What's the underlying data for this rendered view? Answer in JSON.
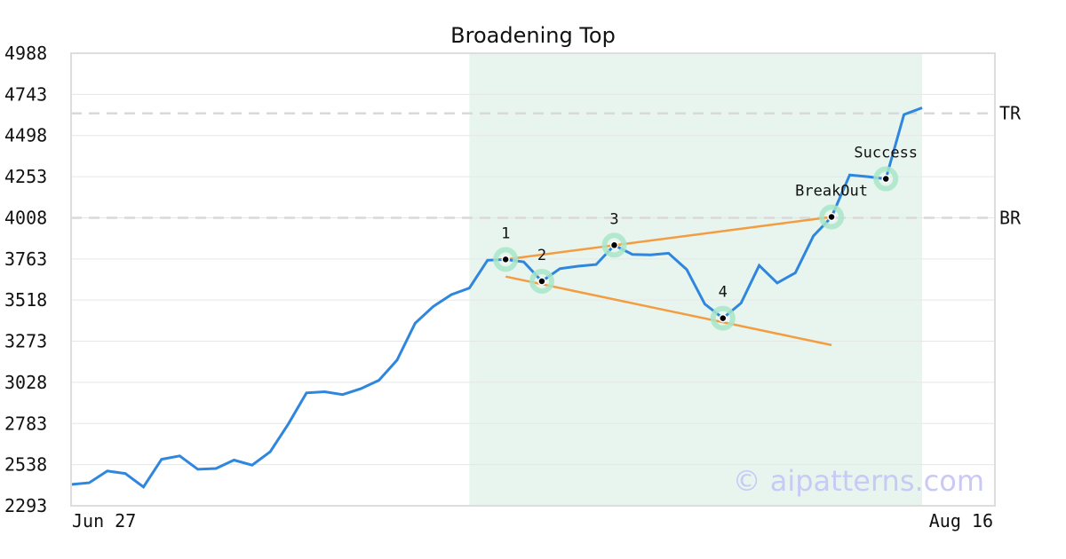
{
  "chart_data": {
    "type": "line",
    "title": "Broadening Top",
    "xlabel": "",
    "ylabel": "",
    "x_tick_labels": [
      "Jun 27",
      "Aug 16"
    ],
    "y_ticks": [
      2293,
      2538,
      2783,
      3028,
      3273,
      3518,
      3763,
      4008,
      4253,
      4498,
      4743,
      4988
    ],
    "ylim": [
      2293,
      4988
    ],
    "grid": "horizontal",
    "series": [
      {
        "color": "#2e86de",
        "values": [
          2420,
          2430,
          2500,
          2485,
          2405,
          2570,
          2590,
          2510,
          2515,
          2565,
          2535,
          2615,
          2780,
          2965,
          2972,
          2955,
          2990,
          3040,
          3160,
          3380,
          3480,
          3550,
          3590,
          3755,
          3760,
          3745,
          3630,
          3705,
          3720,
          3730,
          3845,
          3790,
          3787,
          3797,
          3700,
          3494,
          3410,
          3500,
          3724,
          3620,
          3680,
          3900,
          4013,
          4263,
          4253,
          4240,
          4623,
          4663
        ]
      }
    ],
    "shaded_region": {
      "from_index": 22,
      "to_index": 47,
      "color": "#e8f5ef"
    },
    "horizontal_lines": [
      {
        "label": "TR",
        "value": 4630
      },
      {
        "label": "BR",
        "value": 4008
      }
    ],
    "trend_lines": [
      {
        "from": {
          "index": 24,
          "value": 3760
        },
        "to": {
          "index": 42,
          "value": 4013
        },
        "color": "#f39c40"
      },
      {
        "from": {
          "index": 24,
          "value": 3658
        },
        "to": {
          "index": 42,
          "value": 3250
        },
        "color": "#f39c40"
      }
    ],
    "points": [
      {
        "label": "1",
        "index": 24,
        "value": 3760
      },
      {
        "label": "2",
        "index": 26,
        "value": 3630
      },
      {
        "label": "3",
        "index": 30,
        "value": 3845
      },
      {
        "label": "4",
        "index": 36,
        "value": 3410
      },
      {
        "label": "BreakOut",
        "index": 42,
        "value": 4013
      },
      {
        "label": "Success",
        "index": 45,
        "value": 4240
      }
    ]
  },
  "watermark": "© aipatterns.com"
}
